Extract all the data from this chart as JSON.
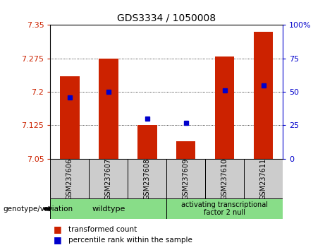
{
  "title": "GDS3334 / 1050008",
  "categories": [
    "GSM237606",
    "GSM237607",
    "GSM237608",
    "GSM237609",
    "GSM237610",
    "GSM237611"
  ],
  "bar_values": [
    7.235,
    7.275,
    7.125,
    7.09,
    7.28,
    7.335
  ],
  "percentile_values": [
    46,
    50,
    30,
    27,
    51,
    55
  ],
  "y_min": 7.05,
  "y_max": 7.35,
  "bar_color": "#cc2200",
  "dot_color": "#0000cc",
  "left_axis_color": "#cc2200",
  "right_axis_color": "#0000cc",
  "left_ticks": [
    7.05,
    7.125,
    7.2,
    7.275,
    7.35
  ],
  "right_ticks": [
    0,
    25,
    50,
    75,
    100
  ],
  "wildtype_samples": [
    0,
    1,
    2
  ],
  "atf2null_samples": [
    3,
    4,
    5
  ],
  "genotype_label1": "wildtype",
  "genotype_label2": "activating transcriptional\nfactor 2 null",
  "legend_label1": "transformed count",
  "legend_label2": "percentile rank within the sample",
  "group_label": "genotype/variation",
  "bg_color_plot": "#ffffff",
  "bg_color_xticklabels": "#cccccc",
  "bg_color_group": "#88dd88"
}
